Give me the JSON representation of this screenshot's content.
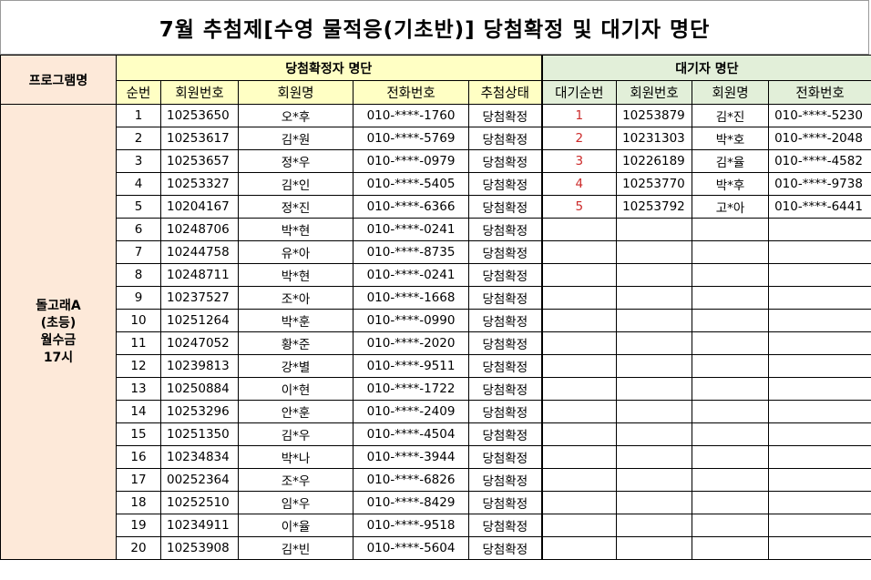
{
  "title": "7월 추첨제[수영 물적응(기초반)] 당첨확정 및 대기자 명단",
  "headers": {
    "program": "프로그램명",
    "winners_group": "당첨확정자 명단",
    "waitlist_group": "대기자 명단",
    "winners_cols": [
      "순번",
      "회원번호",
      "회원명",
      "전화번호",
      "추첨상태"
    ],
    "waitlist_cols": [
      "대기순번",
      "회원번호",
      "회원명",
      "전화번호"
    ]
  },
  "program_name": [
    "돌고래A",
    "(초등)",
    "월수금",
    "17시"
  ],
  "winners": [
    {
      "no": "1",
      "member_id": "10253650",
      "name": "오*후",
      "phone": "010-****-1760",
      "status": "당첨확정"
    },
    {
      "no": "2",
      "member_id": "10253617",
      "name": "김*원",
      "phone": "010-****-5769",
      "status": "당첨확정"
    },
    {
      "no": "3",
      "member_id": "10253657",
      "name": "정*우",
      "phone": "010-****-0979",
      "status": "당첨확정"
    },
    {
      "no": "4",
      "member_id": "10253327",
      "name": "김*인",
      "phone": "010-****-5405",
      "status": "당첨확정"
    },
    {
      "no": "5",
      "member_id": "10204167",
      "name": "정*진",
      "phone": "010-****-6366",
      "status": "당첨확정"
    },
    {
      "no": "6",
      "member_id": "10248706",
      "name": "박*현",
      "phone": "010-****-0241",
      "status": "당첨확정"
    },
    {
      "no": "7",
      "member_id": "10244758",
      "name": "유*아",
      "phone": "010-****-8735",
      "status": "당첨확정"
    },
    {
      "no": "8",
      "member_id": "10248711",
      "name": "박*현",
      "phone": "010-****-0241",
      "status": "당첨확정"
    },
    {
      "no": "9",
      "member_id": "10237527",
      "name": "조*아",
      "phone": "010-****-1668",
      "status": "당첨확정"
    },
    {
      "no": "10",
      "member_id": "10251264",
      "name": "박*훈",
      "phone": "010-****-0990",
      "status": "당첨확정"
    },
    {
      "no": "11",
      "member_id": "10247052",
      "name": "황*준",
      "phone": "010-****-2020",
      "status": "당첨확정"
    },
    {
      "no": "12",
      "member_id": "10239813",
      "name": "강*별",
      "phone": "010-****-9511",
      "status": "당첨확정"
    },
    {
      "no": "13",
      "member_id": "10250884",
      "name": "이*현",
      "phone": "010-****-1722",
      "status": "당첨확정"
    },
    {
      "no": "14",
      "member_id": "10253296",
      "name": "안*훈",
      "phone": "010-****-2409",
      "status": "당첨확정"
    },
    {
      "no": "15",
      "member_id": "10251350",
      "name": "김*우",
      "phone": "010-****-4504",
      "status": "당첨확정"
    },
    {
      "no": "16",
      "member_id": "10234834",
      "name": "박*나",
      "phone": "010-****-3944",
      "status": "당첨확정"
    },
    {
      "no": "17",
      "member_id": "00252364",
      "name": "조*우",
      "phone": "010-****-6826",
      "status": "당첨확정"
    },
    {
      "no": "18",
      "member_id": "10252510",
      "name": "임*우",
      "phone": "010-****-8429",
      "status": "당첨확정"
    },
    {
      "no": "19",
      "member_id": "10234911",
      "name": "이*율",
      "phone": "010-****-9518",
      "status": "당첨확정"
    },
    {
      "no": "20",
      "member_id": "10253908",
      "name": "김*빈",
      "phone": "010-****-5604",
      "status": "당첨확정"
    }
  ],
  "waitlist": [
    {
      "no": "1",
      "member_id": "10253879",
      "name": "김*진",
      "phone": "010-****-5230"
    },
    {
      "no": "2",
      "member_id": "10231303",
      "name": "박*호",
      "phone": "010-****-2048"
    },
    {
      "no": "3",
      "member_id": "10226189",
      "name": "김*율",
      "phone": "010-****-4582"
    },
    {
      "no": "4",
      "member_id": "10253770",
      "name": "박*후",
      "phone": "010-****-9738"
    },
    {
      "no": "5",
      "member_id": "10253792",
      "name": "고*아",
      "phone": "010-****-6441"
    }
  ],
  "colors": {
    "winner_header_bg": "#ffffc4",
    "waitlist_header_bg": "#e2efd9",
    "program_bg": "#fde9d9",
    "waitlist_number_color": "#cc2a2a"
  }
}
